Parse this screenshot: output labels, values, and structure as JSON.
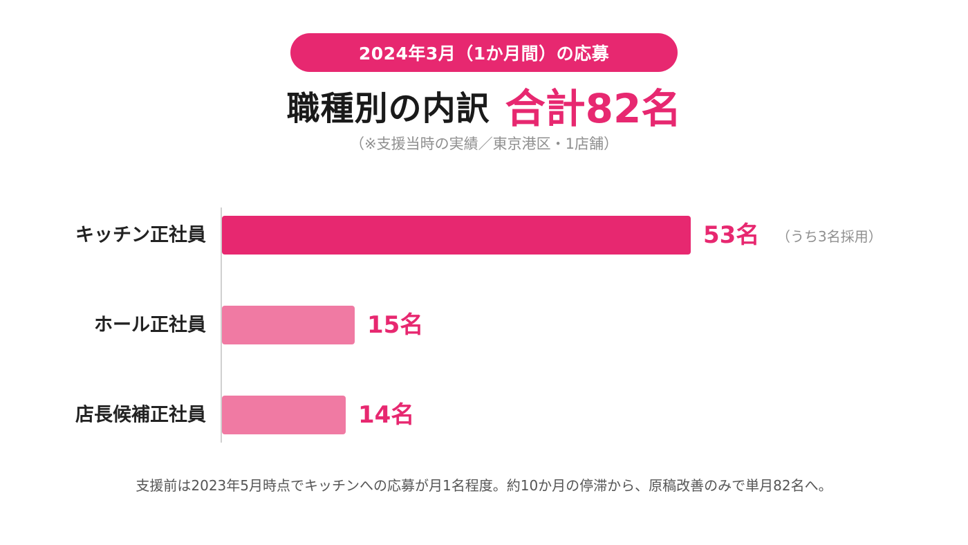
{
  "header": {
    "period_label": "2024年3月（1か月間）の応募",
    "title": "職種別の内訳",
    "total": "合計82名",
    "note": "（※支援当時の実績／東京港区・1店舗）"
  },
  "chart_data": {
    "type": "bar",
    "orientation": "horizontal",
    "categories": [
      "キッチン正社員",
      "ホール正社員",
      "店長候補正社員"
    ],
    "values": [
      53,
      15,
      14
    ],
    "value_labels": [
      "53名",
      "15名",
      "14名"
    ],
    "annotations": [
      "（うち3名採用）",
      "",
      ""
    ],
    "colors": [
      "#e72870",
      "#f07aa3",
      "#f07aa3"
    ],
    "xlim": [
      0,
      53
    ],
    "grid": false
  },
  "footnote": "支援前は2023年5月時点でキッチンへの応募が月1名程度。約10か月の停滞から、原稿改善のみで単月82名へ。",
  "colors": {
    "accent": "#e72870",
    "bar_light": "#f07aa3",
    "axis": "#d0d0d0"
  }
}
